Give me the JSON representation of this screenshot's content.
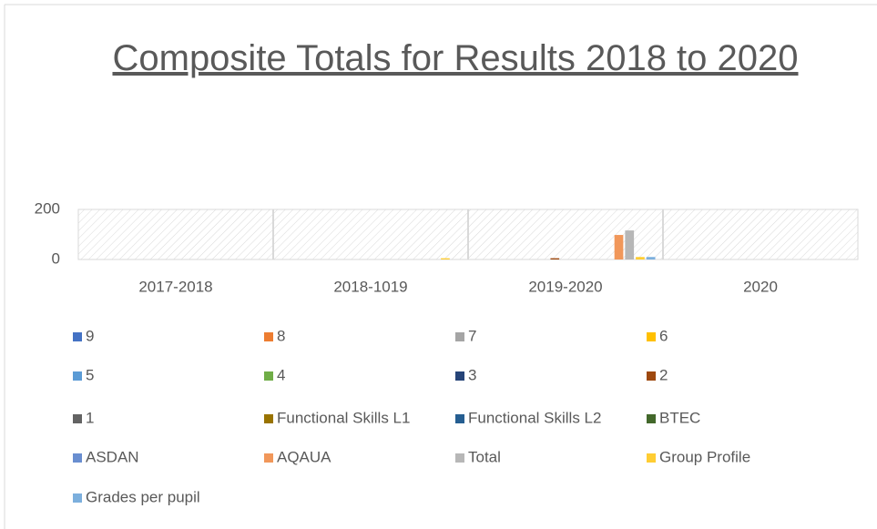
{
  "chart_data": {
    "type": "bar",
    "title": "Composite Totals for Results 2018 to 2020",
    "categories": [
      "2017-2018",
      "2018-1019",
      "2019-2020",
      "2020"
    ],
    "ylim": [
      0,
      200
    ],
    "yticks": [
      0,
      200
    ],
    "series": [
      {
        "name": "9",
        "color": "#4472c4",
        "values": [
          0,
          0,
          0,
          0
        ]
      },
      {
        "name": "8",
        "color": "#ed7d31",
        "values": [
          0,
          0,
          0,
          0
        ]
      },
      {
        "name": "7",
        "color": "#a5a5a5",
        "values": [
          0,
          0,
          0,
          0
        ]
      },
      {
        "name": "6",
        "color": "#ffc000",
        "values": [
          0,
          0,
          0,
          0
        ]
      },
      {
        "name": "5",
        "color": "#5b9bd5",
        "values": [
          0,
          0,
          0,
          0
        ]
      },
      {
        "name": "4",
        "color": "#70ad47",
        "values": [
          0,
          0,
          0,
          0
        ]
      },
      {
        "name": "3",
        "color": "#264478",
        "values": [
          0,
          0,
          0,
          0
        ]
      },
      {
        "name": "2",
        "color": "#9e480e",
        "values": [
          0,
          0,
          5,
          0
        ]
      },
      {
        "name": "1",
        "color": "#636363",
        "values": [
          0,
          0,
          0,
          0
        ]
      },
      {
        "name": "Functional Skills L1",
        "color": "#997300",
        "values": [
          0,
          0,
          0,
          0
        ]
      },
      {
        "name": "Functional Skills L2",
        "color": "#255e91",
        "values": [
          0,
          0,
          0,
          0
        ]
      },
      {
        "name": "BTEC",
        "color": "#43682b",
        "values": [
          0,
          0,
          0,
          0
        ]
      },
      {
        "name": "ASDAN",
        "color": "#698ed0",
        "values": [
          0,
          0,
          0,
          0
        ]
      },
      {
        "name": "AQAUA",
        "color": "#f1975a",
        "values": [
          0,
          0,
          98,
          0
        ]
      },
      {
        "name": "Total",
        "color": "#b7b7b7",
        "values": [
          0,
          0,
          116,
          0
        ]
      },
      {
        "name": "Group Profile",
        "color": "#ffcd33",
        "values": [
          0,
          5,
          10,
          0
        ]
      },
      {
        "name": "Grades per pupil",
        "color": "#7cafdd",
        "values": [
          0,
          0,
          10,
          0
        ]
      }
    ]
  }
}
